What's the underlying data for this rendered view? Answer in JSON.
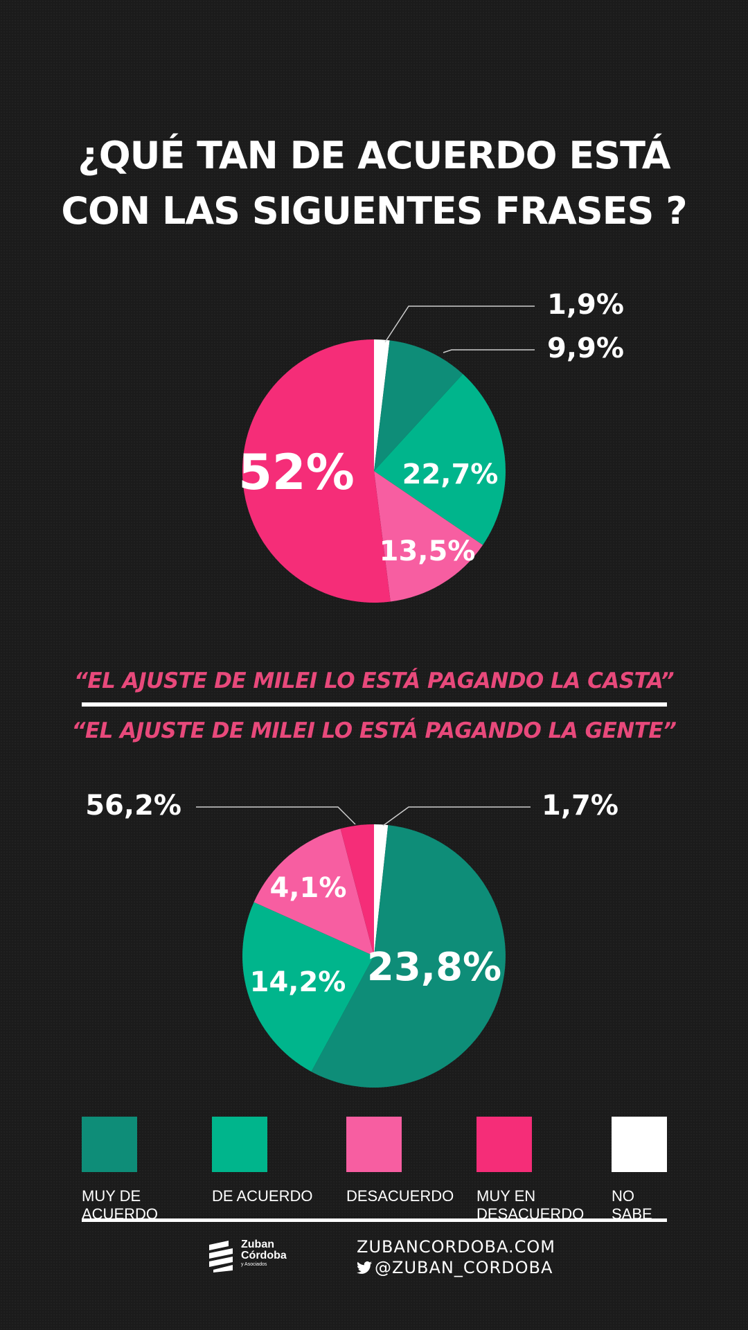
{
  "title_line1": "¿QUÉ TAN DE ACUERDO ESTÁ",
  "title_line2": "CON LAS SIGUENTES FRASES ?",
  "chart_data": [
    {
      "type": "pie",
      "title": "“EL AJUSTE DE MILEI LO ESTÁ PAGANDO  LA CASTA”",
      "categories": [
        "NO SABE",
        "MUY DE ACUERDO",
        "DE ACUERDO",
        "DESACUERDO",
        "MUY EN DESACUERDO"
      ],
      "values": [
        1.9,
        9.9,
        22.7,
        13.5,
        52
      ],
      "labels": [
        "1,9%",
        "9,9%",
        "22,7%",
        "13,5%",
        "52%"
      ],
      "colors": [
        "#ffffff",
        "#0e8d78",
        "#00b58c",
        "#f75ea1",
        "#f52d78"
      ]
    },
    {
      "type": "pie",
      "title": "“EL AJUSTE DE MILEI LO ESTÁ PAGANDO LA GENTE”",
      "categories": [
        "NO SABE",
        "MUY DE ACUERDO",
        "DE ACUERDO",
        "DESACUERDO",
        "MUY EN DESACUERDO"
      ],
      "values": [
        1.7,
        56.2,
        23.8,
        14.2,
        4.1
      ],
      "labels": [
        "1,7%",
        "56,2%",
        "23,8%",
        "14,2%",
        "4,1%"
      ],
      "colors": [
        "#ffffff",
        "#0e8d78",
        "#00b58c",
        "#f75ea1",
        "#f52d78"
      ]
    }
  ],
  "legend": [
    {
      "label": "MUY DE\nACUERDO",
      "color": "#0e8d78"
    },
    {
      "label": "DE ACUERDO",
      "color": "#00b58c"
    },
    {
      "label": "DESACUERDO",
      "color": "#f75ea1"
    },
    {
      "label": "MUY EN\nDESACUERDO",
      "color": "#f52d78"
    },
    {
      "label": "NO\nSABE",
      "color": "#ffffff"
    }
  ],
  "footer": {
    "logo_name1": "Zuban",
    "logo_name2": "Córdoba",
    "logo_sub": "y Asociados",
    "website": "ZUBANCORDOBA.COM",
    "twitter": "@ZUBAN_CORDOBA"
  }
}
